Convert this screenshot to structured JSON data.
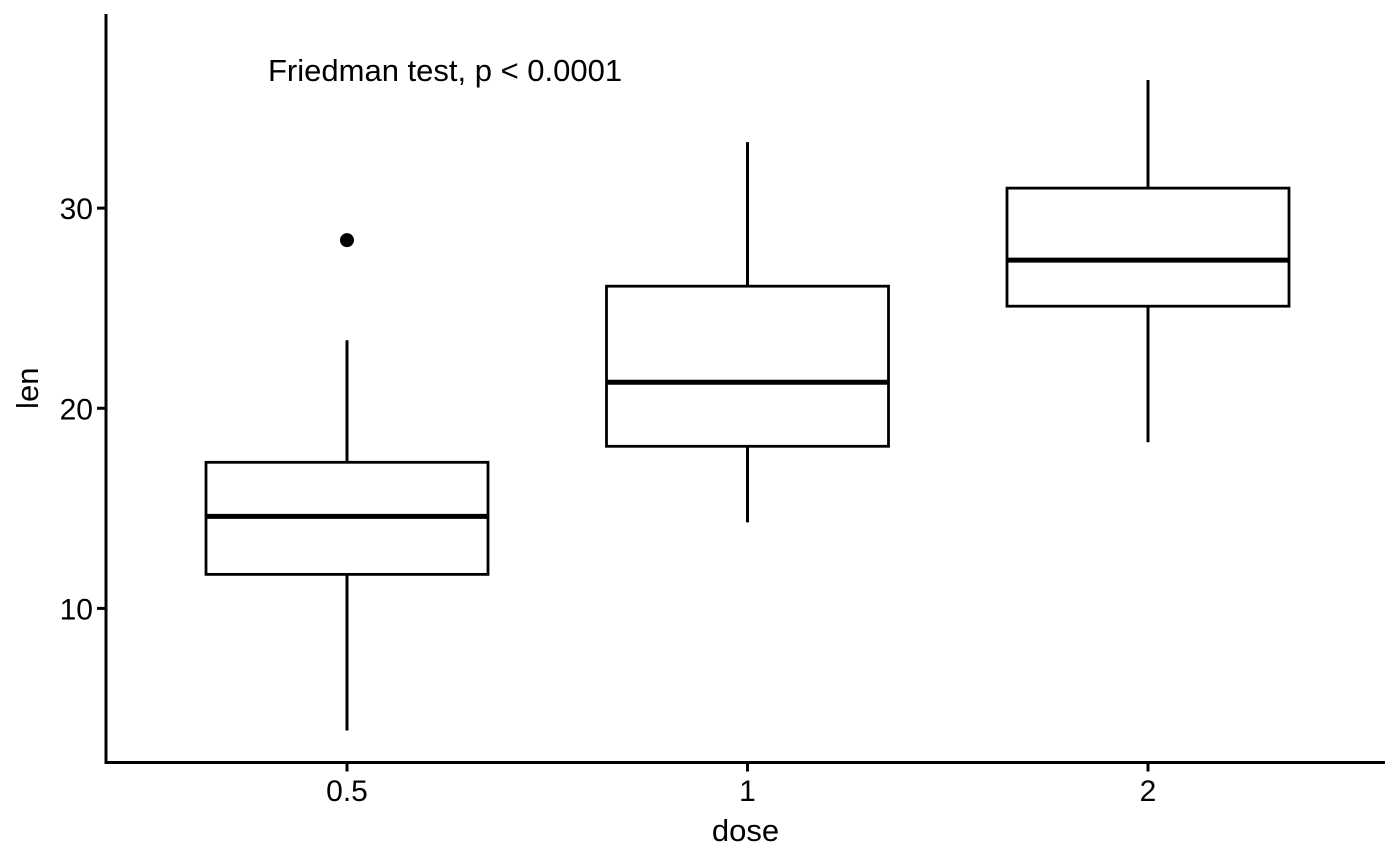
{
  "figure": {
    "background": "#ffffff",
    "ink_color": "#000000"
  },
  "chart_data": {
    "type": "boxplot",
    "title": "Friedman test, p < 0.0001",
    "xlabel": "dose",
    "ylabel": "len",
    "categories": [
      "0.5",
      "1",
      "2"
    ],
    "y_ticks": [
      10,
      20,
      30
    ],
    "ylim": [
      2.3,
      39.7
    ],
    "grid": false,
    "legend": "none",
    "box_fill": "#ffffff",
    "box_stroke": "#000000",
    "series": [
      {
        "category": "0.5",
        "whisker_min": 3.9,
        "q1": 11.7,
        "median": 14.6,
        "q3": 17.3,
        "whisker_max": 23.4,
        "outliers": [
          28.4
        ]
      },
      {
        "category": "1",
        "whisker_min": 14.3,
        "q1": 18.1,
        "median": 21.3,
        "q3": 26.1,
        "whisker_max": 33.3,
        "outliers": []
      },
      {
        "category": "2",
        "whisker_min": 18.3,
        "q1": 25.1,
        "median": 27.4,
        "q3": 31.0,
        "whisker_max": 36.4,
        "outliers": []
      }
    ]
  }
}
